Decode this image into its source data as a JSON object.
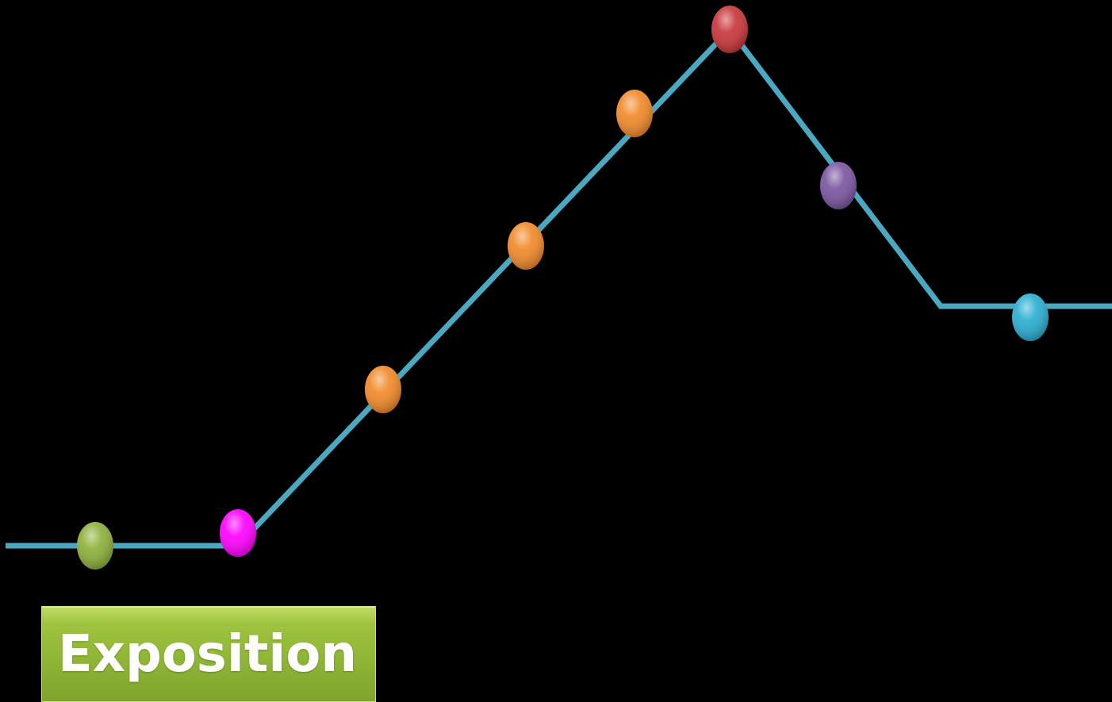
{
  "diagram": {
    "type": "plot-line",
    "line_color": "#4aa8c0",
    "stage_label": "Exposition",
    "stage_label_color": "#8fb636",
    "markers": [
      {
        "name": "marker-green",
        "color": "#8db03a"
      },
      {
        "name": "marker-magenta",
        "color": "#ff00ff"
      },
      {
        "name": "marker-orange-1",
        "color": "#f18a2a"
      },
      {
        "name": "marker-orange-2",
        "color": "#f18a2a"
      },
      {
        "name": "marker-orange-3",
        "color": "#f18a2a"
      },
      {
        "name": "marker-red",
        "color": "#c8363a"
      },
      {
        "name": "marker-purple",
        "color": "#7a55a0"
      },
      {
        "name": "marker-blue",
        "color": "#2aaed0"
      }
    ]
  }
}
